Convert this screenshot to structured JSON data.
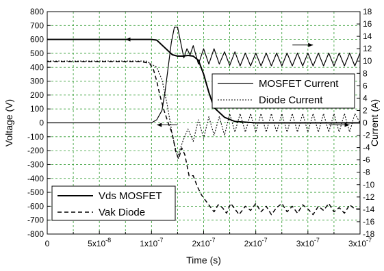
{
  "chart_data": {
    "type": "line",
    "xlabel": "Time (s)",
    "ylabel_left": "Voltage (V)",
    "ylabel_right": "Current (A)",
    "xlim": [
      0,
      3e-07
    ],
    "ylim_left": [
      -800,
      800
    ],
    "ylim_right": [
      -18,
      18
    ],
    "grid": "dashed-green",
    "x_ticks": [
      {
        "value": 0,
        "mantissa": "0",
        "exp": ""
      },
      {
        "value": 5e-08,
        "mantissa": "5x10",
        "exp": "-8"
      },
      {
        "value": 1e-07,
        "mantissa": "1x10",
        "exp": "-7"
      },
      {
        "value": 1.5e-07,
        "mantissa": "2x10",
        "exp": "-7"
      },
      {
        "value": 2e-07,
        "mantissa": "2x10",
        "exp": "-7"
      },
      {
        "value": 2.5e-07,
        "mantissa": "3x10",
        "exp": "-7"
      },
      {
        "value": 3e-07,
        "mantissa": "3x10",
        "exp": "-7"
      }
    ],
    "y_ticks_left": [
      800,
      700,
      600,
      500,
      400,
      300,
      200,
      100,
      0,
      -100,
      -200,
      -300,
      -400,
      -500,
      -600,
      -700,
      -800
    ],
    "y_ticks_right": [
      18,
      16,
      14,
      12,
      10,
      8,
      6,
      4,
      2,
      0,
      -2,
      -4,
      -6,
      -8,
      -10,
      -12,
      -14,
      -16,
      -18
    ],
    "legend_top": {
      "placement": "center-right",
      "items": [
        "MOSFET Current",
        "Diode Current"
      ]
    },
    "legend_bottom": {
      "placement": "bottom-left",
      "items": [
        "Vds MOSFET",
        "Vak Diode"
      ]
    },
    "series": [
      {
        "name": "Vds MOSFET",
        "axis": "left",
        "style": "solid-thick",
        "x": [
          0,
          2e-08,
          5e-08,
          8e-08,
          9.5e-08,
          1e-07,
          1.05e-07,
          1.1e-07,
          1.2e-07,
          1.25e-07,
          1.3e-07,
          1.35e-07,
          1.4e-07,
          1.45e-07,
          1.5e-07,
          1.55e-07,
          1.6e-07,
          1.7e-07,
          1.8e-07,
          2e-07,
          2.5e-07,
          3e-07
        ],
        "y": [
          600,
          600,
          600,
          600,
          600,
          600,
          595,
          560,
          490,
          480,
          480,
          485,
          480,
          450,
          350,
          220,
          110,
          40,
          10,
          0,
          0,
          0
        ]
      },
      {
        "name": "Vak Diode",
        "axis": "left",
        "style": "dashed",
        "x": [
          0,
          3e-08,
          6e-08,
          9e-08,
          9.8e-08,
          1.02e-07,
          1.05e-07,
          1.08e-07,
          1.12e-07,
          1.16e-07,
          1.2e-07,
          1.23e-07,
          1.26e-07,
          1.29e-07,
          1.32e-07,
          1.36e-07,
          1.4e-07,
          1.44e-07,
          1.48e-07,
          1.52e-07,
          1.56e-07,
          1.6e-07,
          1.64e-07,
          1.68e-07,
          1.72e-07,
          1.76e-07,
          1.8e-07,
          1.84e-07,
          1.9e-07,
          1.95e-07,
          2e-07,
          2.05e-07,
          2.1e-07,
          2.15e-07,
          2.2e-07,
          2.25e-07,
          2.3e-07,
          2.35e-07,
          2.4e-07,
          2.45e-07,
          2.5e-07,
          2.55e-07,
          2.6e-07,
          2.65e-07,
          2.7e-07,
          2.75e-07,
          2.8e-07,
          2.85e-07,
          2.9e-07,
          2.95e-07,
          3e-07
        ],
        "y": [
          440,
          440,
          440,
          440,
          430,
          380,
          300,
          200,
          90,
          0,
          -80,
          -200,
          -260,
          -180,
          -230,
          -380,
          -380,
          -460,
          -520,
          -560,
          -600,
          -640,
          -590,
          -610,
          -650,
          -580,
          -620,
          -660,
          -600,
          -630,
          -580,
          -640,
          -600,
          -660,
          -610,
          -580,
          -640,
          -600,
          -650,
          -590,
          -620,
          -660,
          -600,
          -630,
          -580,
          -640,
          -610,
          -650,
          -590,
          -620,
          -620
        ]
      },
      {
        "name": "MOSFET Current",
        "axis": "right",
        "style": "solid-thin",
        "x": [
          0,
          5e-08,
          9e-08,
          1e-07,
          1.05e-07,
          1.1e-07,
          1.13e-07,
          1.16e-07,
          1.19e-07,
          1.22e-07,
          1.25e-07,
          1.28e-07,
          1.31e-07,
          1.34e-07,
          1.37e-07,
          1.4e-07,
          1.45e-07,
          1.5e-07,
          1.55e-07,
          1.6e-07,
          1.65e-07,
          1.7e-07,
          1.75e-07,
          1.8e-07,
          1.85e-07,
          1.9e-07,
          1.95e-07,
          2e-07,
          2.05e-07,
          2.1e-07,
          2.15e-07,
          2.2e-07,
          2.25e-07,
          2.3e-07,
          2.35e-07,
          2.4e-07,
          2.45e-07,
          2.5e-07,
          2.55e-07,
          2.6e-07,
          2.65e-07,
          2.7e-07,
          2.75e-07,
          2.8e-07,
          2.85e-07,
          2.9e-07,
          2.95e-07,
          3e-07
        ],
        "y": [
          0,
          0,
          0,
          0,
          0.5,
          2,
          5,
          9,
          13,
          15.5,
          15.5,
          13,
          10.5,
          12,
          11,
          12.5,
          9.5,
          12,
          9.5,
          12,
          9.5,
          11.5,
          9.3,
          11.5,
          9.2,
          11.3,
          9.2,
          11.3,
          9.2,
          11.3,
          9.2,
          11.3,
          9.2,
          11.3,
          9.2,
          11.3,
          9.2,
          11.3,
          9.2,
          11.3,
          9.2,
          11.3,
          9.2,
          11.3,
          9.2,
          11.3,
          9.2,
          11.3
        ]
      },
      {
        "name": "Diode Current",
        "axis": "right",
        "style": "dotted",
        "x": [
          0,
          5e-08,
          9.5e-08,
          1.05e-07,
          1.1e-07,
          1.15e-07,
          1.2e-07,
          1.25e-07,
          1.3e-07,
          1.35e-07,
          1.4e-07,
          1.45e-07,
          1.5e-07,
          1.55e-07,
          1.6e-07,
          1.65e-07,
          1.7e-07,
          1.75e-07,
          1.8e-07,
          1.85e-07,
          1.9e-07,
          1.95e-07,
          2e-07,
          2.05e-07,
          2.1e-07,
          2.15e-07,
          2.2e-07,
          2.25e-07,
          2.3e-07,
          2.35e-07,
          2.4e-07,
          2.45e-07,
          2.5e-07,
          2.55e-07,
          2.6e-07,
          2.65e-07,
          2.7e-07,
          2.75e-07,
          2.8e-07,
          2.85e-07,
          2.9e-07,
          2.95e-07,
          3e-07
        ],
        "y": [
          10,
          10,
          10,
          9,
          7,
          3,
          -2,
          -5.5,
          -3,
          -1,
          -3,
          0.5,
          -2.5,
          1,
          -2,
          1,
          -2,
          1.5,
          -1.5,
          1.5,
          -1.5,
          1.5,
          -1.5,
          1.5,
          -1.5,
          1.5,
          -1.5,
          1.5,
          -1.5,
          1.5,
          -1.5,
          1.5,
          -1.5,
          1.5,
          -1.5,
          1.5,
          -1.5,
          1.5,
          -1.5,
          1.5,
          -1.5,
          1.5,
          0
        ]
      }
    ],
    "arrows": [
      {
        "target": "Vds MOSFET",
        "direction": "left",
        "x": 8.5e-08,
        "y_left": 600
      },
      {
        "target": "MOSFET Current",
        "direction": "right",
        "x": 2.45e-07,
        "y_left": 560
      },
      {
        "target": "Vak Diode",
        "direction": "left",
        "x": 1.15e-07,
        "y_left": -15
      },
      {
        "target": "Diode Current",
        "direction": "right",
        "x": 2.8e-07,
        "y_left": -15
      }
    ]
  }
}
